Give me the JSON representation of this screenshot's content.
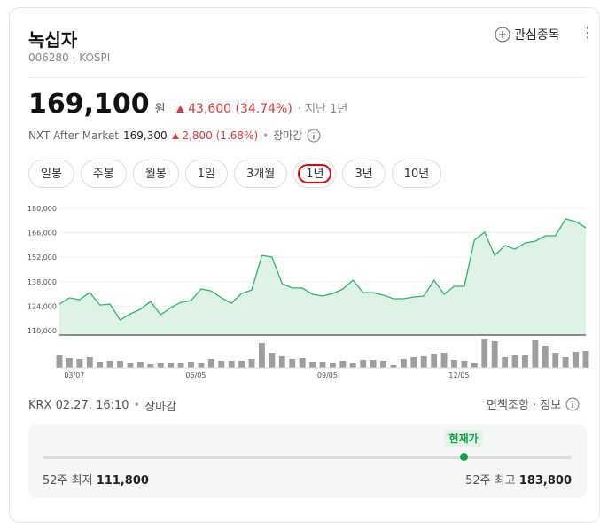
{
  "header": {
    "title": "녹십자",
    "code": "006280 · KOSPI",
    "watch": "관심종목"
  },
  "price": {
    "value": "169,100",
    "unit": "원",
    "change": "43,600 (34.74%)",
    "period": "· 지난 1년"
  },
  "after": {
    "label": "NXT After Market",
    "value": "169,300",
    "change": "2,800 (1.68%)",
    "status": "장마감"
  },
  "periods": [
    "일봉",
    "주봉",
    "월봉",
    "1일",
    "3개월",
    "1년",
    "3년",
    "10년"
  ],
  "selected_period": 5,
  "chart_data": {
    "type": "line",
    "color": "#2fb36b",
    "fill": "#def3e6",
    "volume_color": "#9e9e9e",
    "grid": true,
    "categories": [
      null,
      null,
      "03/07",
      null,
      null,
      null,
      null,
      null,
      null,
      null,
      null,
      null,
      null,
      null,
      "06/05",
      null,
      null,
      null,
      null,
      null,
      null,
      null,
      null,
      null,
      null,
      null,
      null,
      "09/05",
      null,
      null,
      null,
      null,
      null,
      null,
      null,
      null,
      null,
      null,
      null,
      null,
      "12/05",
      null,
      null,
      null,
      null,
      null,
      null,
      null,
      null,
      null,
      null,
      null,
      null
    ],
    "values": [
      125200,
      128800,
      127800,
      131800,
      124700,
      125200,
      116100,
      119600,
      122200,
      126700,
      119100,
      123200,
      126200,
      127200,
      133800,
      132800,
      128800,
      125700,
      131300,
      133300,
      153100,
      152100,
      136900,
      134400,
      134400,
      130800,
      129800,
      131300,
      133800,
      138900,
      131800,
      131800,
      130300,
      128300,
      128300,
      129300,
      129800,
      138900,
      130800,
      135400,
      135400,
      161800,
      166300,
      153100,
      158700,
      156600,
      160200,
      161200,
      164300,
      164300,
      173900,
      172400,
      168900
    ],
    "volume": [
      14,
      11,
      10,
      12,
      7,
      8,
      8,
      6,
      7,
      4,
      5,
      6,
      6,
      7,
      6,
      10,
      8,
      8,
      8,
      10,
      28,
      17,
      13,
      10,
      11,
      7,
      7,
      6,
      8,
      5,
      9,
      9,
      8,
      3,
      10,
      12,
      13,
      16,
      17,
      9,
      8,
      5,
      33,
      30,
      12,
      14,
      14,
      31,
      25,
      17,
      12,
      18,
      19
    ],
    "ylim": [
      107500,
      180000
    ],
    "yticks": [
      {
        "value": 110000,
        "label": "110,000"
      },
      {
        "value": 124000,
        "label": "124,000"
      },
      {
        "value": 138000,
        "label": "138,000"
      },
      {
        "value": 152000,
        "label": "152,000"
      },
      {
        "value": 166000,
        "label": "166,000"
      },
      {
        "value": 180000,
        "label": "180,000"
      }
    ]
  },
  "footer": {
    "time": "KRX 02.27. 16:10",
    "status": "장마감",
    "links": "면책조항 · 정보"
  },
  "range": {
    "current_label": "현재가",
    "low_label": "52주 최저",
    "low": {
      "value": 111800,
      "label": "111,800"
    },
    "high_label": "52주 최고",
    "high": {
      "value": 183800,
      "label": "183,800"
    },
    "current": 169100
  }
}
